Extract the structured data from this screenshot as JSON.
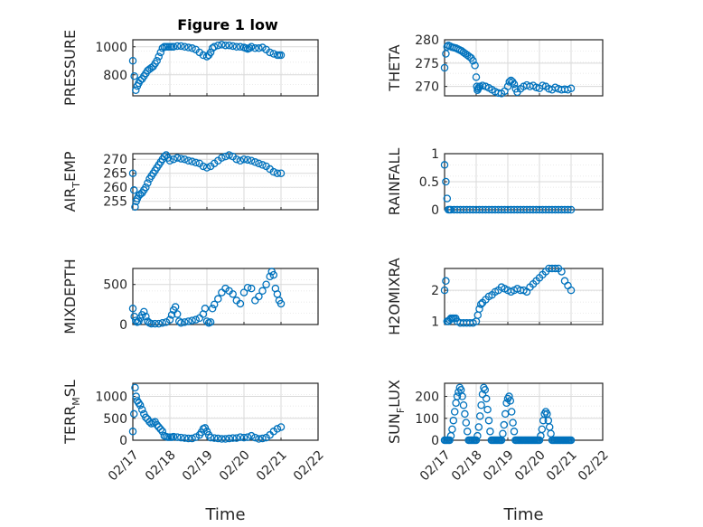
{
  "colors": {
    "series": "#0072bd",
    "axis": "#262626",
    "grid": "#d9d9d9"
  },
  "title": "Figure 1 low",
  "chart_data": [
    {
      "type": "scatter",
      "ylabel": "PRESSURE",
      "ylabel_sub": "",
      "xlim": [
        0,
        5
      ],
      "ylim": [
        650,
        1050
      ],
      "yticks": [
        800,
        1000
      ],
      "ytick_labels": [
        "800",
        "1000"
      ],
      "xticks": [
        0,
        1,
        2,
        3,
        4,
        5
      ],
      "xtick_labels": [],
      "x": [
        0.0,
        0.04,
        0.08,
        0.12,
        0.16,
        0.2,
        0.25,
        0.3,
        0.35,
        0.4,
        0.45,
        0.5,
        0.55,
        0.6,
        0.65,
        0.7,
        0.75,
        0.8,
        0.85,
        0.9,
        0.95,
        1.0,
        1.05,
        1.1,
        1.2,
        1.3,
        1.4,
        1.5,
        1.6,
        1.7,
        1.8,
        1.9,
        2.0,
        2.05,
        2.1,
        2.15,
        2.2,
        2.3,
        2.4,
        2.5,
        2.6,
        2.7,
        2.8,
        2.9,
        3.0,
        3.05,
        3.1,
        3.15,
        3.2,
        3.3,
        3.4,
        3.5,
        3.6,
        3.7,
        3.8,
        3.9,
        3.95,
        4.0
      ],
      "y": [
        900,
        790,
        690,
        720,
        740,
        760,
        770,
        790,
        810,
        830,
        840,
        850,
        860,
        880,
        900,
        930,
        960,
        990,
        1000,
        1000,
        1000,
        1000,
        1000,
        1000,
        1005,
        1005,
        1000,
        995,
        990,
        980,
        960,
        940,
        930,
        940,
        960,
        990,
        1000,
        1010,
        1015,
        1010,
        1010,
        1005,
        1000,
        1000,
        995,
        990,
        985,
        990,
        1000,
        990,
        990,
        995,
        980,
        960,
        950,
        940,
        940,
        940
      ]
    },
    {
      "type": "scatter",
      "ylabel": "THETA",
      "ylabel_sub": "",
      "xlim": [
        0,
        5
      ],
      "ylim": [
        268,
        280
      ],
      "yticks": [
        270,
        275,
        280
      ],
      "ytick_labels": [
        "270",
        "275",
        "280"
      ],
      "xticks": [
        0,
        1,
        2,
        3,
        4,
        5
      ],
      "xtick_labels": [],
      "x": [
        0.0,
        0.04,
        0.08,
        0.12,
        0.18,
        0.24,
        0.3,
        0.36,
        0.42,
        0.48,
        0.54,
        0.6,
        0.66,
        0.72,
        0.78,
        0.84,
        0.9,
        0.96,
        1.0,
        1.02,
        1.04,
        1.06,
        1.08,
        1.12,
        1.2,
        1.3,
        1.4,
        1.5,
        1.6,
        1.7,
        1.8,
        1.9,
        2.0,
        2.05,
        2.1,
        2.15,
        2.2,
        2.25,
        2.3,
        2.4,
        2.5,
        2.6,
        2.7,
        2.8,
        2.9,
        3.0,
        3.1,
        3.2,
        3.3,
        3.4,
        3.5,
        3.6,
        3.7,
        3.8,
        3.9,
        4.0
      ],
      "y": [
        274,
        277,
        278.5,
        278.8,
        278.6,
        278.4,
        278.3,
        278.2,
        278.0,
        277.8,
        277.6,
        277.3,
        277.0,
        276.7,
        276.4,
        276.1,
        275.5,
        274.5,
        272,
        270,
        269.2,
        269.5,
        269.8,
        270.0,
        270.2,
        270.0,
        269.7,
        269.3,
        268.9,
        268.6,
        268.5,
        269.0,
        270.0,
        271.0,
        271.3,
        271.0,
        270.5,
        269.5,
        268.8,
        269.5,
        270.0,
        270.3,
        270.0,
        270.2,
        269.8,
        269.6,
        270.2,
        270.0,
        269.5,
        269.3,
        269.8,
        269.5,
        269.3,
        269.4,
        269.3,
        269.6
      ]
    },
    {
      "type": "scatter",
      "ylabel": "AIR",
      "ylabel_sub": "T",
      "ylabel_rest": "EMP",
      "xlim": [
        0,
        5
      ],
      "ylim": [
        252,
        272
      ],
      "yticks": [
        255,
        260,
        265,
        270
      ],
      "ytick_labels": [
        "255",
        "260",
        "265",
        "270"
      ],
      "xticks": [
        0,
        1,
        2,
        3,
        4,
        5
      ],
      "xtick_labels": [],
      "x": [
        0.0,
        0.03,
        0.06,
        0.09,
        0.12,
        0.16,
        0.2,
        0.25,
        0.3,
        0.35,
        0.4,
        0.45,
        0.5,
        0.55,
        0.6,
        0.65,
        0.7,
        0.75,
        0.8,
        0.85,
        0.9,
        0.95,
        1.0,
        1.1,
        1.2,
        1.3,
        1.4,
        1.5,
        1.6,
        1.7,
        1.8,
        1.9,
        2.0,
        2.1,
        2.2,
        2.3,
        2.4,
        2.5,
        2.6,
        2.7,
        2.8,
        2.9,
        3.0,
        3.1,
        3.2,
        3.3,
        3.4,
        3.5,
        3.6,
        3.7,
        3.8,
        3.9,
        4.0
      ],
      "y": [
        265,
        259,
        253,
        255,
        256,
        257,
        257.5,
        258,
        259,
        260,
        261.5,
        263,
        264,
        265,
        266,
        267,
        268,
        269,
        270,
        271,
        271.5,
        270.5,
        269.5,
        270,
        270.5,
        270.2,
        270,
        269.5,
        269.2,
        268.8,
        268.5,
        267.5,
        267,
        267.5,
        268.5,
        269.5,
        270.5,
        271,
        271.5,
        271,
        270,
        269.5,
        270,
        269.8,
        269.5,
        269,
        268.5,
        268,
        267.5,
        266.5,
        265.5,
        265,
        265
      ]
    },
    {
      "type": "scatter",
      "ylabel": "RAINFALL",
      "ylabel_sub": "",
      "xlim": [
        0,
        5
      ],
      "ylim": [
        0,
        1
      ],
      "yticks": [
        0,
        0.5,
        1
      ],
      "ytick_labels": [
        "0",
        "0.5",
        "1"
      ],
      "xticks": [
        0,
        1,
        2,
        3,
        4,
        5
      ],
      "xtick_labels": [],
      "x": [
        0.0,
        0.04,
        0.08,
        0.12,
        0.16,
        0.2,
        0.3,
        0.4,
        0.5,
        0.6,
        0.7,
        0.8,
        0.9,
        1.0,
        1.1,
        1.2,
        1.3,
        1.4,
        1.5,
        1.6,
        1.7,
        1.8,
        1.9,
        2.0,
        2.1,
        2.2,
        2.3,
        2.4,
        2.5,
        2.6,
        2.7,
        2.8,
        2.9,
        3.0,
        3.1,
        3.2,
        3.3,
        3.4,
        3.5,
        3.6,
        3.7,
        3.8,
        3.9,
        4.0
      ],
      "y": [
        0.8,
        0.5,
        0.2,
        0,
        0,
        0,
        0,
        0,
        0,
        0,
        0,
        0,
        0,
        0,
        0,
        0,
        0,
        0,
        0,
        0,
        0,
        0,
        0,
        0,
        0,
        0,
        0,
        0,
        0,
        0,
        0,
        0,
        0,
        0,
        0,
        0,
        0,
        0,
        0,
        0,
        0,
        0,
        0,
        0
      ]
    },
    {
      "type": "scatter",
      "ylabel": "MIXDEPTH",
      "ylabel_sub": "",
      "xlim": [
        0,
        5
      ],
      "ylim": [
        0,
        700
      ],
      "yticks": [
        0,
        500
      ],
      "ytick_labels": [
        "0",
        "500"
      ],
      "xticks": [
        0,
        1,
        2,
        3,
        4,
        5
      ],
      "xtick_labels": [],
      "x": [
        0.0,
        0.04,
        0.08,
        0.12,
        0.16,
        0.2,
        0.25,
        0.3,
        0.35,
        0.4,
        0.45,
        0.5,
        0.6,
        0.7,
        0.8,
        0.9,
        1.0,
        1.05,
        1.1,
        1.15,
        1.2,
        1.25,
        1.3,
        1.4,
        1.5,
        1.6,
        1.7,
        1.8,
        1.9,
        1.95,
        2.0,
        2.05,
        2.1,
        2.15,
        2.2,
        2.3,
        2.4,
        2.5,
        2.6,
        2.7,
        2.8,
        2.9,
        3.0,
        3.1,
        3.2,
        3.3,
        3.4,
        3.5,
        3.6,
        3.7,
        3.75,
        3.8,
        3.85,
        3.9,
        3.95,
        4.0
      ],
      "y": [
        200,
        100,
        50,
        30,
        40,
        80,
        120,
        160,
        100,
        40,
        20,
        10,
        10,
        10,
        20,
        30,
        60,
        120,
        180,
        220,
        130,
        40,
        20,
        30,
        40,
        50,
        60,
        80,
        130,
        200,
        40,
        20,
        30,
        200,
        250,
        320,
        400,
        450,
        420,
        380,
        300,
        260,
        400,
        460,
        450,
        300,
        350,
        420,
        500,
        600,
        660,
        620,
        450,
        380,
        300,
        260
      ]
    },
    {
      "type": "scatter",
      "ylabel": "H2OMIXRA",
      "ylabel_sub": "",
      "xlim": [
        0,
        5
      ],
      "ylim": [
        0.9,
        2.7
      ],
      "yticks": [
        1,
        2
      ],
      "ytick_labels": [
        "1",
        "2"
      ],
      "xticks": [
        0,
        1,
        2,
        3,
        4,
        5
      ],
      "xtick_labels": [],
      "x": [
        0.0,
        0.04,
        0.08,
        0.12,
        0.16,
        0.2,
        0.25,
        0.3,
        0.35,
        0.4,
        0.5,
        0.6,
        0.7,
        0.8,
        0.9,
        1.0,
        1.05,
        1.1,
        1.15,
        1.2,
        1.3,
        1.4,
        1.5,
        1.6,
        1.7,
        1.8,
        1.9,
        2.0,
        2.1,
        2.2,
        2.3,
        2.4,
        2.5,
        2.6,
        2.7,
        2.8,
        2.9,
        3.0,
        3.1,
        3.2,
        3.3,
        3.4,
        3.5,
        3.6,
        3.7,
        3.8,
        3.9,
        4.0
      ],
      "y": [
        2.0,
        2.3,
        1.0,
        1.0,
        1.05,
        1.1,
        1.1,
        1.1,
        1.1,
        1.0,
        0.95,
        0.95,
        0.95,
        0.95,
        0.95,
        1.0,
        1.2,
        1.4,
        1.55,
        1.6,
        1.7,
        1.8,
        1.85,
        1.95,
        2.0,
        2.1,
        2.05,
        2.0,
        1.95,
        2.0,
        2.05,
        2.0,
        2.0,
        1.95,
        2.1,
        2.2,
        2.3,
        2.4,
        2.5,
        2.6,
        2.7,
        2.7,
        2.7,
        2.7,
        2.6,
        2.3,
        2.15,
        2.0
      ]
    },
    {
      "type": "scatter",
      "ylabel": "TERR",
      "ylabel_sub": "M",
      "ylabel_rest": "SL",
      "xlim": [
        0,
        5
      ],
      "ylim": [
        0,
        1300
      ],
      "yticks": [
        0,
        500,
        1000
      ],
      "ytick_labels": [
        "0",
        "500",
        "1000"
      ],
      "xticks": [
        0,
        1,
        2,
        3,
        4,
        5
      ],
      "xtick_labels": [
        "02/17",
        "02/18",
        "02/19",
        "02/20",
        "02/21",
        "02/22"
      ],
      "xlabel": "Time",
      "x": [
        0.0,
        0.03,
        0.06,
        0.09,
        0.12,
        0.16,
        0.2,
        0.25,
        0.3,
        0.35,
        0.4,
        0.45,
        0.5,
        0.55,
        0.6,
        0.65,
        0.7,
        0.75,
        0.8,
        0.85,
        0.9,
        0.95,
        1.0,
        1.05,
        1.1,
        1.2,
        1.3,
        1.4,
        1.5,
        1.6,
        1.7,
        1.8,
        1.85,
        1.9,
        1.95,
        2.0,
        2.05,
        2.1,
        2.2,
        2.3,
        2.4,
        2.5,
        2.6,
        2.7,
        2.8,
        2.9,
        3.0,
        3.1,
        3.2,
        3.3,
        3.4,
        3.5,
        3.6,
        3.7,
        3.8,
        3.9,
        4.0
      ],
      "y": [
        200,
        600,
        1200,
        1000,
        900,
        850,
        800,
        700,
        600,
        520,
        480,
        420,
        380,
        400,
        420,
        350,
        300,
        250,
        200,
        100,
        80,
        70,
        70,
        70,
        80,
        70,
        60,
        50,
        40,
        40,
        70,
        120,
        180,
        260,
        280,
        200,
        120,
        60,
        50,
        40,
        30,
        30,
        40,
        50,
        50,
        70,
        60,
        70,
        100,
        60,
        30,
        40,
        60,
        120,
        200,
        260,
        300
      ]
    },
    {
      "type": "scatter",
      "ylabel": "SUN",
      "ylabel_sub": "F",
      "ylabel_rest": "LUX",
      "xlim": [
        0,
        5
      ],
      "ylim": [
        0,
        260
      ],
      "yticks": [
        0,
        100,
        200
      ],
      "ytick_labels": [
        "0",
        "100",
        "200"
      ],
      "xticks": [
        0,
        1,
        2,
        3,
        4,
        5
      ],
      "xtick_labels": [
        "02/17",
        "02/18",
        "02/19",
        "02/20",
        "02/21",
        "02/22"
      ],
      "xlabel": "Time",
      "x": [
        0.0,
        0.04,
        0.08,
        0.12,
        0.16,
        0.2,
        0.24,
        0.28,
        0.32,
        0.36,
        0.4,
        0.44,
        0.48,
        0.52,
        0.56,
        0.6,
        0.64,
        0.68,
        0.72,
        0.76,
        0.8,
        0.84,
        0.88,
        0.92,
        0.96,
        1.0,
        1.04,
        1.08,
        1.12,
        1.16,
        1.2,
        1.24,
        1.28,
        1.32,
        1.36,
        1.4,
        1.44,
        1.48,
        1.52,
        1.56,
        1.6,
        1.64,
        1.68,
        1.72,
        1.76,
        1.8,
        1.84,
        1.88,
        1.92,
        1.96,
        2.0,
        2.04,
        2.08,
        2.12,
        2.16,
        2.2,
        2.24,
        2.28,
        2.32,
        2.36,
        2.4,
        2.44,
        2.48,
        2.52,
        2.56,
        2.6,
        2.64,
        2.68,
        2.72,
        2.76,
        2.8,
        2.84,
        2.88,
        2.92,
        2.96,
        3.0,
        3.04,
        3.08,
        3.12,
        3.16,
        3.2,
        3.24,
        3.28,
        3.32,
        3.36,
        3.4,
        3.44,
        3.48,
        3.52,
        3.56,
        3.6,
        3.64,
        3.68,
        3.72,
        3.76,
        3.8,
        3.84,
        3.88,
        3.92,
        3.96,
        4.0
      ],
      "y": [
        0,
        0,
        0,
        0,
        0,
        20,
        50,
        90,
        130,
        170,
        200,
        220,
        240,
        230,
        200,
        160,
        120,
        80,
        40,
        0,
        0,
        0,
        0,
        0,
        0,
        0,
        20,
        60,
        110,
        160,
        210,
        240,
        230,
        190,
        140,
        90,
        40,
        0,
        0,
        0,
        0,
        0,
        0,
        0,
        0,
        0,
        30,
        70,
        120,
        170,
        190,
        200,
        180,
        130,
        80,
        40,
        0,
        0,
        0,
        0,
        0,
        0,
        0,
        0,
        0,
        0,
        0,
        0,
        0,
        0,
        0,
        0,
        0,
        0,
        0,
        0,
        20,
        50,
        90,
        120,
        130,
        120,
        90,
        60,
        30,
        0,
        0,
        0,
        0,
        0,
        0,
        0,
        0,
        0,
        0,
        0,
        0,
        0,
        0,
        0,
        0
      ]
    }
  ]
}
